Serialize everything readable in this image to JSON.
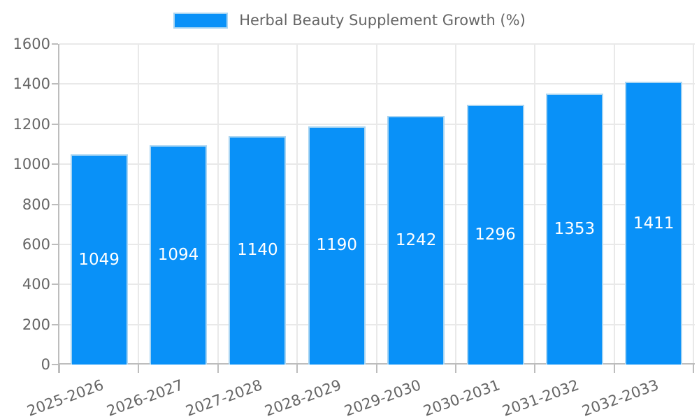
{
  "legend": {
    "label": "Herbal Beauty Supplement Growth (%)"
  },
  "chart_data": {
    "type": "bar",
    "title": "Herbal Beauty Supplement Growth (%)",
    "categories": [
      "2025-2026",
      "2026-2027",
      "2027-2028",
      "2028-2029",
      "2029-2030",
      "2030-2031",
      "2031-2032",
      "2032-2033"
    ],
    "values": [
      1049,
      1094,
      1140,
      1190,
      1242,
      1296,
      1353,
      1411
    ],
    "xlabel": "",
    "ylabel": "",
    "ylim": [
      0,
      1600
    ],
    "yticks": [
      0,
      200,
      400,
      600,
      800,
      1000,
      1200,
      1400,
      1600
    ],
    "grid": true,
    "legend_position": "top",
    "bar_width_fraction": 0.72,
    "x_label_rotation_deg": -20,
    "colors": {
      "bar_fill": "#0991f8",
      "bar_border": "#a9d5f2",
      "value_label": "#ffffff",
      "grid": "#e9e9e9",
      "axis": "#bdbdbd",
      "tick_text": "#666666",
      "legend_text": "#666666",
      "background": "#ffffff"
    }
  }
}
